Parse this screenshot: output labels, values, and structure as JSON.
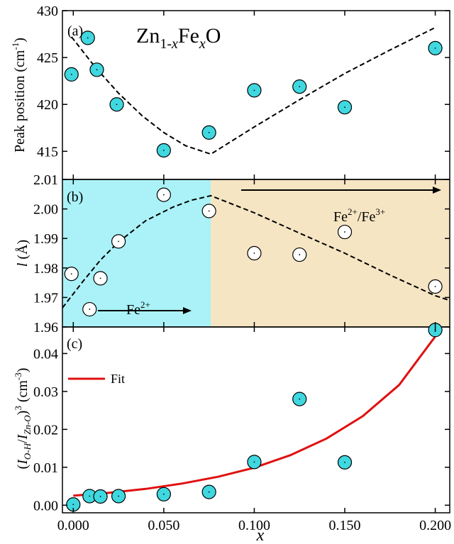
{
  "figure": {
    "x_axis_label": "x",
    "x_ticks": [
      "0.000",
      "0.050",
      "0.100",
      "0.150",
      "0.200"
    ],
    "x_tick_values": [
      0,
      0.05,
      0.1,
      0.15,
      0.2
    ],
    "xlim": [
      -0.006,
      0.208
    ]
  },
  "chart_data": [
    {
      "type": "scatter",
      "panel_label": "(a)",
      "title": "Zn1-xFexO",
      "ylabel": "Peak position (cm-1)",
      "ylim": [
        412,
        430
      ],
      "y_ticks": [
        415,
        420,
        425,
        430
      ],
      "marker_color": "#40d8e0",
      "series": [
        {
          "kind": "points",
          "x": [
            -0.001,
            0.008,
            0.013,
            0.024,
            0.05,
            0.075,
            0.1,
            0.125,
            0.15,
            0.2
          ],
          "y": [
            423.2,
            427.1,
            423.7,
            420.0,
            415.1,
            417.0,
            421.5,
            421.9,
            419.7,
            426.0
          ]
        },
        {
          "kind": "dashed-fit",
          "x": [
            -0.001,
            0.012,
            0.025,
            0.038,
            0.05,
            0.062,
            0.076,
            0.1,
            0.125,
            0.15,
            0.175,
            0.2
          ],
          "y": [
            427.2,
            424.0,
            421.2,
            418.8,
            417.0,
            415.6,
            414.7,
            417.6,
            420.5,
            423.3,
            425.8,
            428.2
          ]
        }
      ]
    },
    {
      "type": "scatter",
      "panel_label": "(b)",
      "ylabel": "l (Å)",
      "ylim": [
        1.96,
        2.01
      ],
      "y_ticks": [
        1.96,
        1.97,
        1.98,
        1.99,
        2.0,
        2.01
      ],
      "regions": [
        {
          "x_start": -0.006,
          "x_end": 0.076,
          "color": "#aaf2f7",
          "label_base": "Fe",
          "label_sup": "2+"
        },
        {
          "x_start": 0.076,
          "x_end": 0.208,
          "color": "#f5e5c3",
          "label_base": "Fe",
          "label_sup": "2+",
          "label_mid": "/Fe",
          "label_sup2": "3+"
        }
      ],
      "series": [
        {
          "kind": "points",
          "x": [
            -0.001,
            0.009,
            0.015,
            0.025,
            0.05,
            0.075,
            0.1,
            0.125,
            0.15,
            0.2
          ],
          "y": [
            1.978,
            1.966,
            1.9765,
            1.989,
            2.0048,
            1.9993,
            1.985,
            1.9845,
            1.9922,
            1.9737
          ]
        },
        {
          "kind": "dashed-fit",
          "x": [
            -0.006,
            0.005,
            0.015,
            0.025,
            0.04,
            0.055,
            0.065,
            0.076,
            0.1,
            0.125,
            0.15,
            0.175,
            0.2,
            0.208
          ],
          "y": [
            1.9665,
            1.9752,
            1.9827,
            1.9888,
            1.996,
            2.0006,
            2.0029,
            2.0045,
            1.9987,
            1.9918,
            1.985,
            1.9776,
            1.9706,
            1.969
          ]
        }
      ]
    },
    {
      "type": "scatter",
      "panel_label": "(c)",
      "ylabel": "(IO-H/IZn-O)3 (cm-3)",
      "ylim": [
        -0.002,
        0.047
      ],
      "y_ticks": [
        "0.00",
        "0.01",
        "0.02",
        "0.03",
        "0.04"
      ],
      "y_tick_values": [
        0,
        0.01,
        0.02,
        0.03,
        0.04
      ],
      "legend": {
        "entry": "Fit",
        "position": "top-left",
        "color": "#e01010"
      },
      "marker_color": "#40d8e0",
      "series": [
        {
          "kind": "points",
          "x": [
            0.0,
            0.009,
            0.015,
            0.025,
            0.05,
            0.075,
            0.1,
            0.125,
            0.15,
            0.2
          ],
          "y": [
            0.0002,
            0.0024,
            0.0023,
            0.0024,
            0.0029,
            0.0035,
            0.0114,
            0.028,
            0.0113,
            0.0462
          ]
        },
        {
          "kind": "fit-line",
          "name": "Fit",
          "x": [
            0.0,
            0.02,
            0.04,
            0.06,
            0.08,
            0.1,
            0.12,
            0.14,
            0.16,
            0.18,
            0.2
          ],
          "y": [
            0.0025,
            0.0033,
            0.0043,
            0.0057,
            0.0075,
            0.0099,
            0.0132,
            0.0176,
            0.0235,
            0.0317,
            0.0445
          ]
        }
      ]
    }
  ]
}
